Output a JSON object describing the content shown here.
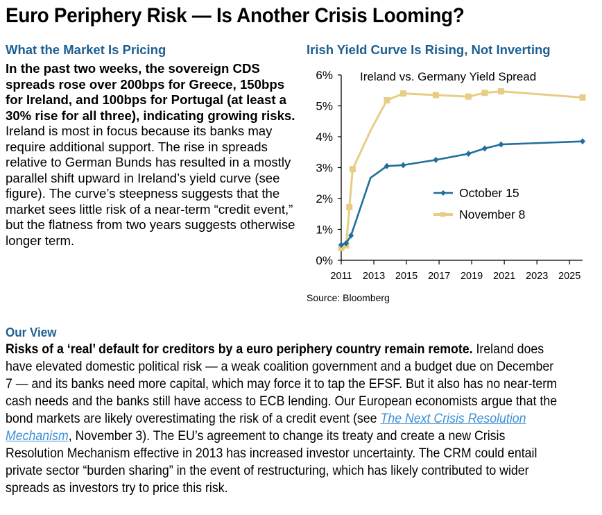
{
  "page": {
    "title": "Euro Periphery Risk — Is Another Crisis Looming?"
  },
  "market_section": {
    "heading": "What the Market Is Pricing",
    "lead": "In the past two weeks, the sovereign CDS spreads rose over 200bps for Greece, 150bps for Ireland, and 100bps for Portugal (at least a 30% rise for all three), indicating growing risks.",
    "body": " Ireland is most in focus because its banks may require additional support. The rise in spreads relative to German Bunds has resulted in a mostly parallel shift upward in Ireland’s yield curve (see figure). The curve’s steepness suggests that the market sees little risk of a near-term “credit event,” but the flatness from two years suggests otherwise longer term."
  },
  "chart_section": {
    "heading": "Irish Yield Curve Is Rising, Not Inverting",
    "source": "Source: Bloomberg"
  },
  "view_section": {
    "heading": "Our View",
    "lead": "Risks of a ‘real’ default for creditors by a euro periphery country remain remote.",
    "body_before_link": " Ireland does have elevated domestic political risk — a weak coalition government and a budget due on December 7 — and its banks need more capital, which may force it to tap the EFSF. But it also has no near-term cash needs and the banks still have access to ECB lending. Our European economists argue that the bond markets are likely overestimating the risk of a credit event (see ",
    "link_text": "The Next Crisis Resolution Mechanism",
    "body_after_link": ", November 3). The EU’s agreement to change its treaty and create a new Crisis Resolution Mechanism effective in 2013 has increased investor uncertainty. The CRM could entail private sector “burden sharing” in the event of restructuring, which has likely contributed to wider spreads as investors try to price this risk."
  },
  "chart_data": {
    "type": "line",
    "title": "Ireland vs. Germany Yield Spread",
    "xlabel": "",
    "ylabel": "",
    "xlim": [
      2011,
      2025.8
    ],
    "ylim": [
      0,
      6
    ],
    "xticks": [
      2011,
      2013,
      2015,
      2017,
      2019,
      2021,
      2023,
      2025
    ],
    "xtick_labels": [
      "2011",
      "2013",
      "2015",
      "2017",
      "2019",
      "2021",
      "2023",
      "2025"
    ],
    "yticks": [
      0,
      1,
      2,
      3,
      4,
      5,
      6
    ],
    "ytick_labels": [
      "0%",
      "1%",
      "2%",
      "3%",
      "4%",
      "5%",
      "6%"
    ],
    "grid": false,
    "legend_position": "center-right",
    "series": [
      {
        "name": "October 15",
        "color": "#1f6e9c",
        "marker": "diamond",
        "points": [
          {
            "x": 2011.0,
            "y": 0.5,
            "marker": true
          },
          {
            "x": 2011.3,
            "y": 0.55,
            "marker": true
          },
          {
            "x": 2011.6,
            "y": 0.8,
            "marker": true
          },
          {
            "x": 2012.8,
            "y": 2.67,
            "marker": false
          },
          {
            "x": 2013.8,
            "y": 3.05,
            "marker": true
          },
          {
            "x": 2014.8,
            "y": 3.08,
            "marker": true
          },
          {
            "x": 2016.8,
            "y": 3.25,
            "marker": true
          },
          {
            "x": 2018.8,
            "y": 3.45,
            "marker": true
          },
          {
            "x": 2019.8,
            "y": 3.62,
            "marker": true
          },
          {
            "x": 2020.8,
            "y": 3.75,
            "marker": true
          },
          {
            "x": 2025.8,
            "y": 3.85,
            "marker": true
          }
        ]
      },
      {
        "name": "November 8",
        "color": "#e9cc85",
        "marker": "square",
        "points": [
          {
            "x": 2011.0,
            "y": 0.4,
            "marker": true
          },
          {
            "x": 2011.3,
            "y": 0.48,
            "marker": true
          },
          {
            "x": 2011.5,
            "y": 1.72,
            "marker": true
          },
          {
            "x": 2011.7,
            "y": 2.95,
            "marker": true
          },
          {
            "x": 2012.8,
            "y": 4.2,
            "marker": false
          },
          {
            "x": 2013.8,
            "y": 5.18,
            "marker": true
          },
          {
            "x": 2014.8,
            "y": 5.4,
            "marker": true
          },
          {
            "x": 2016.8,
            "y": 5.35,
            "marker": true
          },
          {
            "x": 2018.8,
            "y": 5.3,
            "marker": true
          },
          {
            "x": 2019.8,
            "y": 5.42,
            "marker": true
          },
          {
            "x": 2020.8,
            "y": 5.47,
            "marker": true
          },
          {
            "x": 2025.8,
            "y": 5.27,
            "marker": true
          }
        ]
      }
    ]
  }
}
